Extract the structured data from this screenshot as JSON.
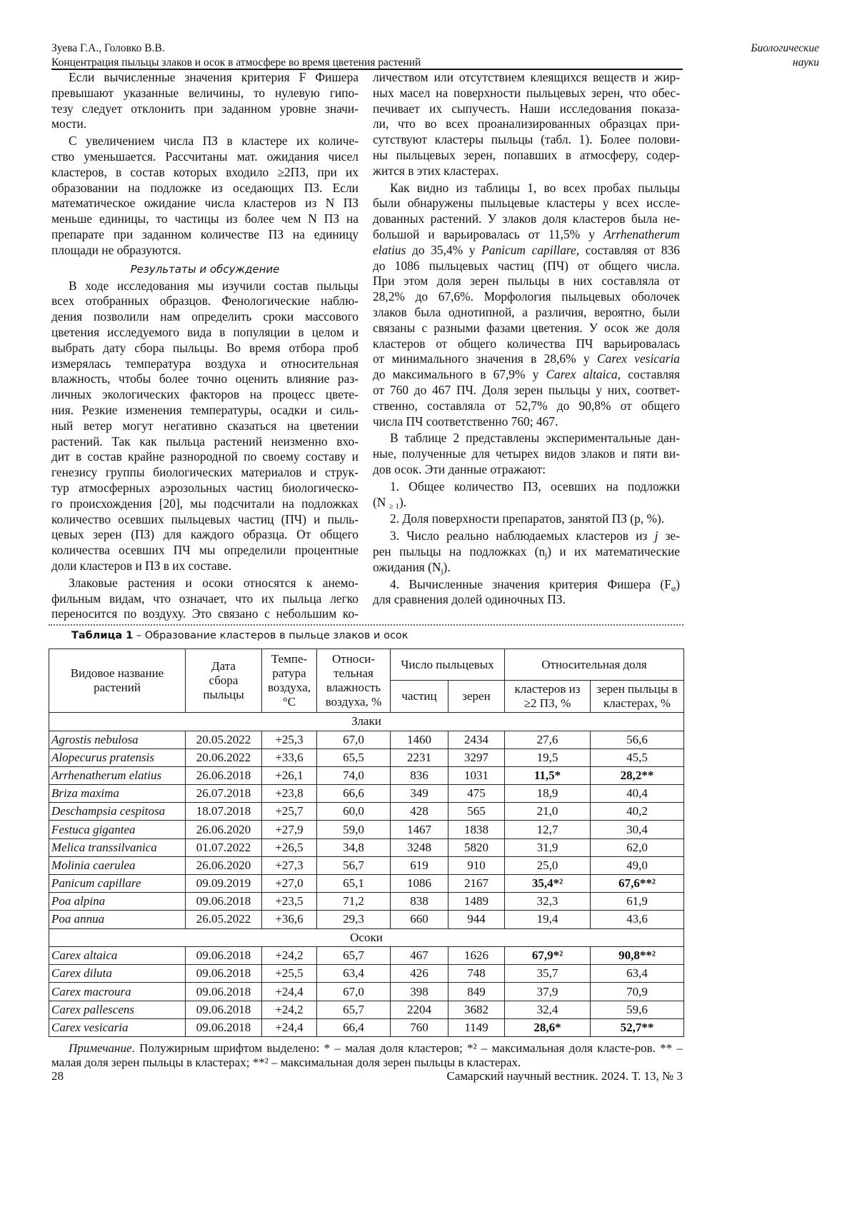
{
  "header": {
    "authors": "Зуева Г.А., Головко В.В.",
    "article_title": "Концентрация пыльцы злаков и осок в атмосфере во время цветения растений",
    "section_line1": "Биологические",
    "section_line2": "науки"
  },
  "columns": {
    "left": [
      {
        "type": "p",
        "lines": [
          "Если вычисленные значения критерия F Фишера",
          "превышают указанные величины, то нулевую гипо-",
          "тезу следует отклонить при заданном уровне значи-",
          "мости."
        ]
      },
      {
        "type": "p",
        "lines": [
          "С увеличением числа ПЗ в кластере их количе-",
          "ство уменьшается. Рассчитаны мат. ожидания чисел",
          "кластеров, в состав которых входило ≥2ПЗ, при их",
          "образовании на подложке из оседающих ПЗ. Если",
          "математическое ожидание числа кластеров из N ПЗ",
          "меньше единицы, то частицы из более чем N ПЗ на",
          "препарате при заданном количестве ПЗ на единицу",
          "площади не образуются."
        ]
      },
      {
        "type": "h",
        "text": "Результаты и обсуждение"
      },
      {
        "type": "p",
        "lines": [
          "В ходе исследования мы изучили состав пыльцы",
          "всех отобранных образцов. Фенологические наблю-",
          "дения позволили нам определить сроки массового",
          "цветения исследуемого вида в популяции в целом и",
          "выбрать дату сбора пыльцы. Во время отбора проб",
          "измерялась температура воздуха и относительная",
          "влажность, чтобы более точно оценить влияние раз-",
          "личных экологических факторов на процесс цвете-",
          "ния. Резкие изменения температуры, осадки и силь-",
          "ный ветер могут негативно сказаться на цветении",
          "растений. Так как пыльца растений неизменно вхо-",
          "дит в состав крайне разнородной по своему составу и",
          "генезису группы биологических материалов и струк-",
          "тур атмосферных аэрозольных частиц биологическо-",
          "го происхождения [20], мы подсчитали на подложках",
          "количество осевших пыльцевых частиц (ПЧ) и пыль-",
          "цевых зерен (ПЗ) для каждого образца. От общего",
          "количества осевших ПЧ мы определили процентные",
          "доли кластеров и ПЗ в их составе."
        ]
      },
      {
        "type": "p",
        "open": true,
        "lines": [
          "Злаковые растения и осоки относятся к анемо-",
          "фильным видам, что означает, что их пыльца легко",
          "переносится по воздуху. Это связано с небольшим ко-"
        ]
      }
    ],
    "right": [
      {
        "type": "p",
        "cont": true,
        "lines": [
          "личеством или отсутствием клеящихся веществ и жир-",
          "ных масел на поверхности пыльцевых зерен, что обес-",
          "печивает их сыпучесть. Наши исследования показа-",
          "ли, что во всех проанализированных образцах при-",
          "сутствуют кластеры пыльцы (табл. 1). Более полови-",
          "ны пыльцевых зерен, попавших в атмосферу, содер-",
          "жится в этих кластерах."
        ]
      },
      {
        "type": "p",
        "lines": [
          "Как видно из таблицы 1, во всех пробах пыльцы",
          "были обнаружены пыльцевые кластеры у всех иссле-",
          "дованных растений. У злаков доля кластеров была не-",
          [
            [
              "большой и варьировалась от 11,5% у ",
              ""
            ],
            [
              "Arrhenatherum",
              "i"
            ]
          ],
          [
            [
              "elatius",
              "i"
            ],
            [
              " до 35,4% у ",
              ""
            ],
            [
              "Panicum capillare",
              "i"
            ],
            [
              ", составляя от 836",
              ""
            ]
          ],
          "до 1086 пыльцевых частиц (ПЧ) от общего числа.",
          "При этом доля зерен пыльцы в них составляла от",
          "28,2% до 67,6%. Морфология пыльцевых оболочек",
          "злаков была однотипной, а различия, вероятно, были",
          "связаны с разными фазами цветения. У осок же доля",
          "кластеров от общего количества ПЧ варьировалась",
          [
            [
              "от минимального значения в 28,6% у ",
              ""
            ],
            [
              "Carex vesicaria",
              "i"
            ]
          ],
          [
            [
              "до максимального в 67,9% у ",
              ""
            ],
            [
              "Carex altaica",
              "i"
            ],
            [
              ", составляя",
              ""
            ]
          ],
          "от 760 до 467 ПЧ. Доля зерен пыльцы у них, соответ-",
          "ственно, составляла от 52,7% до 90,8% от общего",
          "числа ПЧ соответственно 760; 467."
        ]
      },
      {
        "type": "p",
        "lines": [
          "В таблице 2 представлены экспериментальные дан-",
          "ные, полученные для четырех видов злаков и пяти ви-",
          "дов осок. Эти данные отражают:"
        ]
      },
      {
        "type": "p",
        "lines": [
          "1. Общее количество ПЗ, осевших на подложки",
          [
            [
              "(N ",
              ""
            ],
            [
              "≥ 1",
              "sub"
            ],
            [
              ").",
              ""
            ]
          ]
        ]
      },
      {
        "type": "p",
        "lines": [
          "2. Доля поверхности препаратов, занятой ПЗ (p, %)."
        ]
      },
      {
        "type": "p",
        "lines": [
          [
            [
              "3. Число реально наблюдаемых кластеров из ",
              ""
            ],
            [
              "j",
              "i"
            ],
            [
              " зе-",
              ""
            ]
          ],
          [
            [
              "рен пыльцы на подложках (n",
              ""
            ],
            [
              "j",
              "sub"
            ],
            [
              ") и их математические",
              ""
            ]
          ],
          [
            [
              "ожидания (N",
              ""
            ],
            [
              "j",
              "sub"
            ],
            [
              ").",
              ""
            ]
          ]
        ]
      },
      {
        "type": "p",
        "lines": [
          [
            [
              "4. Вычисленные значения критерия Фишера (F",
              ""
            ],
            [
              "φ",
              "sub"
            ],
            [
              ")",
              ""
            ]
          ],
          "для сравнения долей одиночных ПЗ."
        ]
      }
    ]
  },
  "table": {
    "caption_label": "Таблица 1",
    "caption_text": " – Образование кластеров в пыльце злаков и осок",
    "headers": {
      "species": "Видовое название растений",
      "date": "Дата сбора пыльцы",
      "temp": "Темпе-ратура воздуха, °C",
      "humidity": "Относи-тельная влажность воздуха, %",
      "count_group": "Число пыльцевых",
      "particles": "частиц",
      "grains": "зерен",
      "share_group": "Относительная доля",
      "clusters": "кластеров из ≥2 ПЗ, %",
      "grains_in_clusters": "зерен пыльцы в кластерах, %"
    },
    "groups": [
      {
        "name": "Злаки",
        "rows": [
          [
            "Agrostis nebulosa",
            "20.05.2022",
            "+25,3",
            "67,0",
            "1460",
            "2434",
            "27,6",
            "56,6",
            false
          ],
          [
            "Alopecurus pratensis",
            "20.06.2022",
            "+33,6",
            "65,5",
            "2231",
            "3297",
            "19,5",
            "45,5",
            false
          ],
          [
            "Arrhenatherum elatius",
            "26.06.2018",
            "+26,1",
            "74,0",
            "836",
            "1031",
            "11,5*",
            "28,2**",
            true
          ],
          [
            "Briza maxima",
            "26.07.2018",
            "+23,8",
            "66,6",
            "349",
            "475",
            "18,9",
            "40,4",
            false
          ],
          [
            "Deschampsia cespitosa",
            "18.07.2018",
            "+25,7",
            "60,0",
            "428",
            "565",
            "21,0",
            "40,2",
            false
          ],
          [
            "Festuca gigantea",
            "26.06.2020",
            "+27,9",
            "59,0",
            "1467",
            "1838",
            "12,7",
            "30,4",
            false
          ],
          [
            "Melica transsilvanica",
            "01.07.2022",
            "+26,5",
            "34,8",
            "3248",
            "5820",
            "31,9",
            "62,0",
            false
          ],
          [
            "Molinia caerulea",
            "26.06.2020",
            "+27,3",
            "56,7",
            "619",
            "910",
            "25,0",
            "49,0",
            false
          ],
          [
            "Panicum capillare",
            "09.09.2019",
            "+27,0",
            "65,1",
            "1086",
            "2167",
            "35,4*²",
            "67,6**²",
            true
          ],
          [
            "Poa alpina",
            "09.06.2018",
            "+23,5",
            "71,2",
            "838",
            "1489",
            "32,3",
            "61,9",
            false
          ],
          [
            "Poa annua",
            "26.05.2022",
            "+36,6",
            "29,3",
            "660",
            "944",
            "19,4",
            "43,6",
            false
          ]
        ]
      },
      {
        "name": "Осоки",
        "rows": [
          [
            "Carex altaica",
            "09.06.2018",
            "+24,2",
            "65,7",
            "467",
            "1626",
            "67,9*²",
            "90,8**²",
            true
          ],
          [
            "Carex diluta",
            "09.06.2018",
            "+25,5",
            "63,4",
            "426",
            "748",
            "35,7",
            "63,4",
            false
          ],
          [
            "Carex macroura",
            "09.06.2018",
            "+24,4",
            "67,0",
            "398",
            "849",
            "37,9",
            "70,9",
            false
          ],
          [
            "Carex pallescens",
            "09.06.2018",
            "+24,2",
            "65,7",
            "2204",
            "3682",
            "32,4",
            "59,6",
            false
          ],
          [
            "Carex vesicaria",
            "09.06.2018",
            "+24,4",
            "66,4",
            "760",
            "1149",
            "28,6*",
            "52,7**",
            true
          ]
        ]
      }
    ],
    "note_label": "Примечание",
    "note_text": ". Полужирным шрифтом выделено: * – малая доля кластеров; *² – максимальная доля класте-ров. ** – малая доля зерен пыльцы в кластерах; **² – максимальная доля зерен пыльцы в кластерах."
  },
  "footer": {
    "page_number": "28",
    "journal": "Самарский научный вестник. 2024. Т. 13, № 3"
  }
}
